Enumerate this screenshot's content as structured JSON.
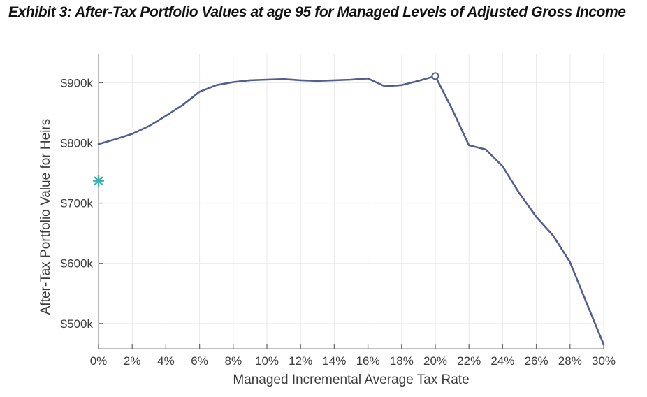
{
  "title": "Exhibit 3: After-Tax Portfolio Values at age 95 for Managed Levels of Adjusted Gross Income",
  "colors": {
    "line": "#525f8d",
    "circle_marker_stroke": "#525f8d",
    "circle_marker_fill": "#ffffff",
    "star_marker": "#3ab4ab",
    "grid": "#e9e9e9",
    "axis": "#9b9b9b",
    "tick": "#6e6e6e",
    "tick_label": "#3c3c3c",
    "background": "#ffffff"
  },
  "chart_data": {
    "type": "line",
    "title": "Exhibit 3: After-Tax Portfolio Values at age 95 for Managed Levels of Adjusted Gross Income",
    "xlabel": "Managed Incremental Average Tax Rate",
    "ylabel": "After-Tax Portfolio Value for Heirs",
    "x_unit": "percent",
    "y_unit": "thousand_dollars",
    "xlim": [
      0,
      30
    ],
    "ylim": [
      458,
      948
    ],
    "grid": true,
    "legend": "none",
    "x_ticks": {
      "values": [
        0,
        2,
        4,
        6,
        8,
        10,
        12,
        14,
        16,
        18,
        20,
        22,
        24,
        26,
        28,
        30
      ],
      "labels": [
        "0%",
        "2%",
        "4%",
        "6%",
        "8%",
        "10%",
        "12%",
        "14%",
        "16%",
        "18%",
        "20%",
        "22%",
        "24%",
        "26%",
        "28%",
        "30%"
      ]
    },
    "y_ticks": {
      "values": [
        500,
        600,
        700,
        800,
        900
      ],
      "labels": [
        "$500k",
        "$600k",
        "$700k",
        "$800k",
        "$900k"
      ]
    },
    "series": [
      {
        "name": "after-tax-portfolio-value-for-heirs",
        "x": [
          0,
          1,
          2,
          3,
          4,
          5,
          6,
          7,
          8,
          9,
          10,
          11,
          12,
          13,
          14,
          15,
          16,
          17,
          18,
          19,
          20,
          21,
          22,
          23,
          24,
          25,
          26,
          27,
          28,
          29,
          30
        ],
        "y": [
          798,
          806,
          815,
          828,
          845,
          863,
          885,
          896,
          901,
          904,
          905,
          906,
          904,
          903,
          904,
          905,
          907,
          894,
          896,
          903,
          911,
          856,
          796,
          789,
          761,
          716,
          677,
          646,
          602,
          533,
          465
        ],
        "color": "#525f8d"
      }
    ],
    "markers": [
      {
        "name": "baseline-star-marker",
        "shape": "asterisk",
        "x": 0,
        "y": 737,
        "color": "#3ab4ab"
      },
      {
        "name": "peak-circle-marker",
        "shape": "open-circle",
        "x": 20,
        "y": 911,
        "color": "#525f8d"
      }
    ]
  }
}
